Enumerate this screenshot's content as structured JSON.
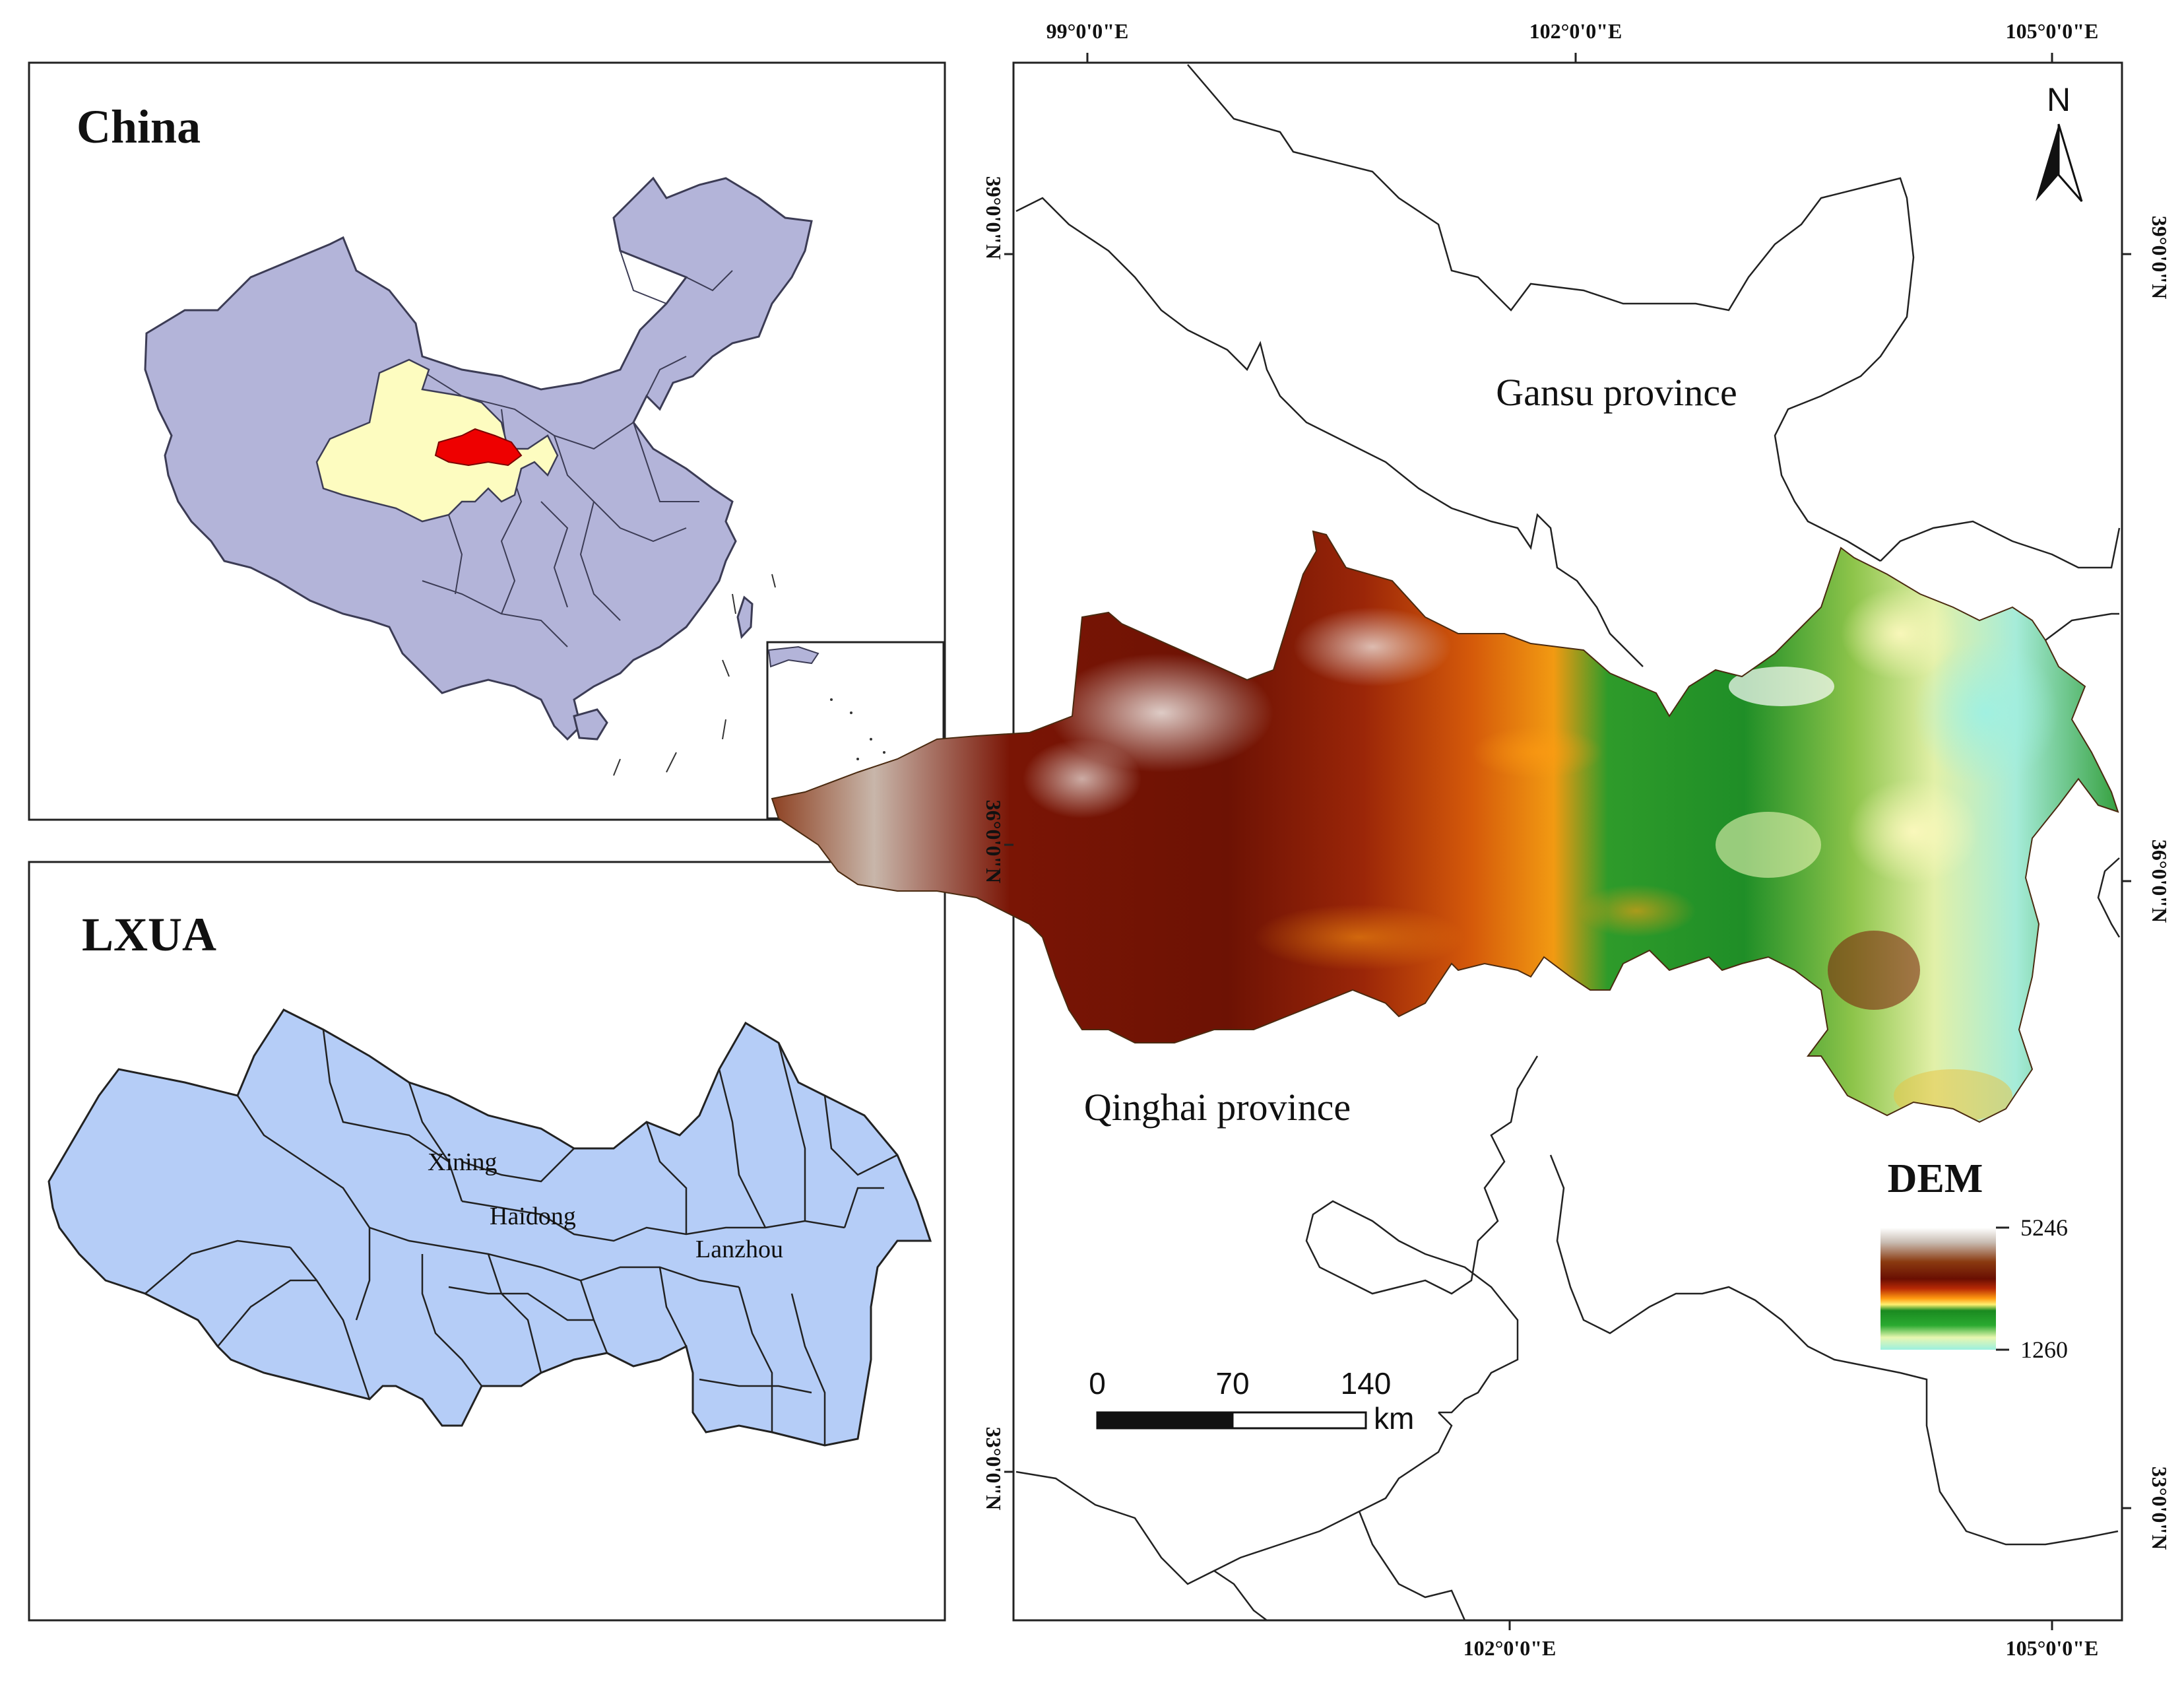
{
  "panels": {
    "china": {
      "title": "China"
    },
    "lxua": {
      "title": "LXUA",
      "cities": [
        "Xining",
        "Haidong",
        "Lanzhou"
      ]
    },
    "dem": {
      "top_lon_labels": [
        "99°0'0\"E",
        "102°0'0\"E",
        "105°0'0\"E"
      ],
      "bottom_lon_labels": [
        "102°0'0\"E",
        "105°0'0\"E"
      ],
      "left_lat_labels": [
        "39°0'0\"N",
        "36°0'0\"N",
        "33°0'0\"N"
      ],
      "right_lat_labels": [
        "39°0'0\"N",
        "36°0'0\"N",
        "33°0'0\"N"
      ],
      "provinces": [
        "Gansu province",
        "Qinghai province"
      ],
      "north_label": "N",
      "legend": {
        "title": "DEM",
        "max": "5246",
        "min": "1260"
      },
      "scale_bar": {
        "ticks": [
          "0",
          "70",
          "140"
        ],
        "unit": "km"
      }
    }
  },
  "colors": {
    "china_fill": "#b3b4d9",
    "region_fill": "#fdfcc0",
    "lxua_china_fill": "#ee0000",
    "lxua_fill": "#b5cdf7",
    "dem_high": "#ffffff",
    "dem_mid": "#7a1a05",
    "dem_low_green": "#1a9a2a",
    "dem_lowest": "#a8f0e0"
  }
}
